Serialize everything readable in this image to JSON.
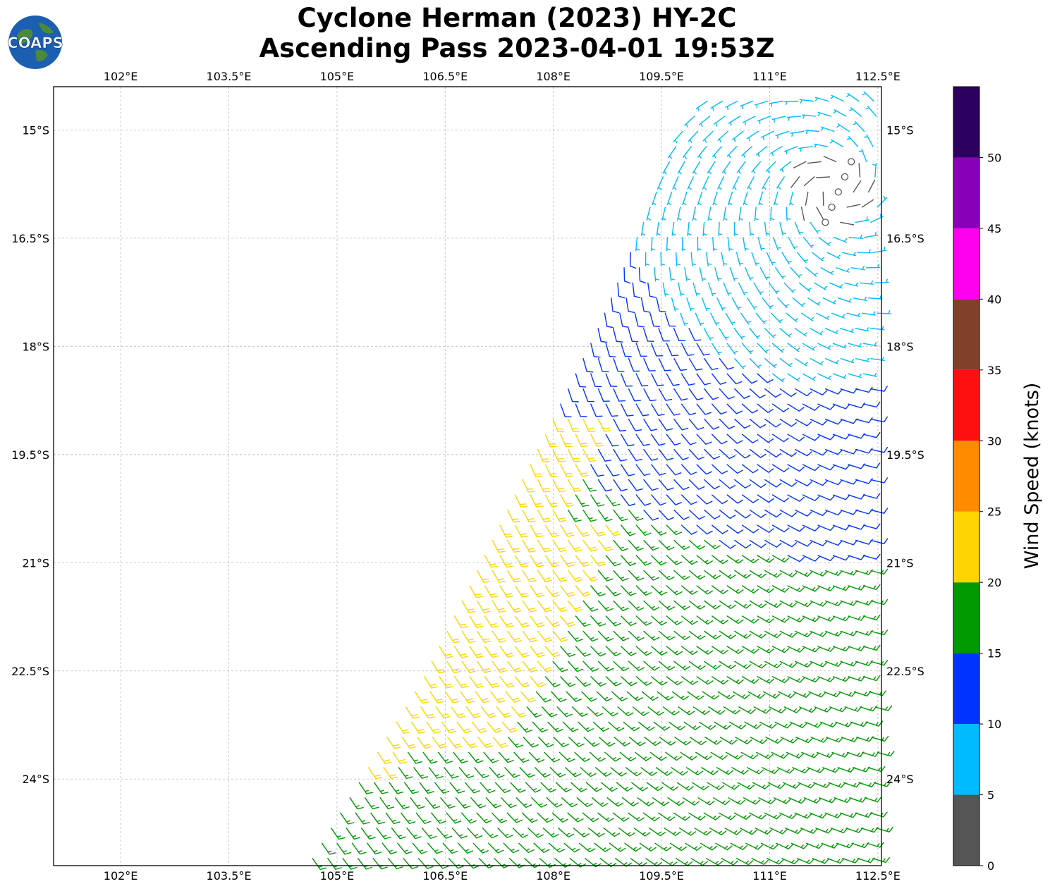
{
  "title": {
    "line1": "Cyclone Herman (2023) HY-2C",
    "line2": "Ascending Pass 2023-04-01 19:53Z"
  },
  "logo": {
    "text": "COAPS",
    "icon": "globe-logo-icon"
  },
  "chart_data": {
    "type": "wind-barb",
    "title": "Cyclone Herman (2023) HY-2C Ascending Pass 2023-04-01 19:53Z",
    "xlabel": "",
    "ylabel": "",
    "xlim": [
      101.07,
      112.55
    ],
    "ylim": [
      -25.2,
      -14.4
    ],
    "x_ticks": [
      102,
      103.5,
      105,
      106.5,
      108,
      109.5,
      111,
      112.5
    ],
    "x_tick_labels": [
      "102°E",
      "103.5°E",
      "105°E",
      "106.5°E",
      "108°E",
      "109.5°E",
      "111°E",
      "112.5°E"
    ],
    "y_ticks": [
      -15,
      -16.5,
      -18,
      -19.5,
      -21,
      -22.5,
      -24
    ],
    "y_tick_labels": [
      "15°S",
      "16.5°S",
      "18°S",
      "19.5°S",
      "21°S",
      "22.5°S",
      "24°S"
    ],
    "grid": true,
    "storm_center_approx": {
      "lon": 111.9,
      "lat": -15.8
    },
    "swath_west_edge": [
      [
        104.6,
        -25.2
      ],
      [
        106.2,
        -22.6
      ],
      [
        107.4,
        -20.2
      ],
      [
        108.6,
        -17.8
      ],
      [
        109.8,
        -15.0
      ],
      [
        110.3,
        -14.4
      ]
    ],
    "colorbar": {
      "label": "Wind Speed (knots)",
      "bins": [
        {
          "min": 0,
          "max": 5,
          "color": "#555555"
        },
        {
          "min": 5,
          "max": 10,
          "color": "#00bbff"
        },
        {
          "min": 10,
          "max": 15,
          "color": "#0033ff"
        },
        {
          "min": 15,
          "max": 20,
          "color": "#009900"
        },
        {
          "min": 20,
          "max": 25,
          "color": "#ffd500"
        },
        {
          "min": 25,
          "max": 30,
          "color": "#ff8c00"
        },
        {
          "min": 30,
          "max": 35,
          "color": "#ff1010"
        },
        {
          "min": 35,
          "max": 40,
          "color": "#80402a"
        },
        {
          "min": 40,
          "max": 45,
          "color": "#ff00ee"
        },
        {
          "min": 45,
          "max": 50,
          "color": "#8800b8"
        },
        {
          "min": 50,
          "max": 55,
          "color": "#2c005f"
        }
      ],
      "ticks": [
        0,
        5,
        10,
        15,
        20,
        25,
        30,
        35,
        40,
        45,
        50
      ]
    },
    "wind_regions": [
      {
        "description": "storm core calm/light",
        "speed_kt": 3,
        "color": "#555555"
      },
      {
        "description": "north and east of swath",
        "speed_kt": 8,
        "color": "#00bbff"
      },
      {
        "description": "west and south-east band",
        "speed_kt": 13,
        "color": "#0033ff"
      },
      {
        "description": "south and west band",
        "speed_kt": 18,
        "color": "#009900"
      },
      {
        "description": "western swath edge band",
        "speed_kt": 22,
        "color": "#ffd500"
      }
    ]
  }
}
